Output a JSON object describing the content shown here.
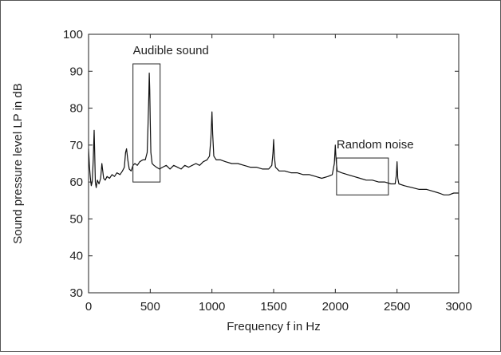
{
  "chart_data": {
    "type": "line",
    "title": "",
    "xlabel": "Frequency f in Hz",
    "ylabel": "Sound pressure level LP in dB",
    "xlim": [
      0,
      3000
    ],
    "ylim": [
      30,
      100
    ],
    "xticks": [
      0,
      500,
      1000,
      1500,
      2000,
      2500,
      3000
    ],
    "yticks": [
      30,
      40,
      50,
      60,
      70,
      80,
      90,
      100
    ],
    "grid": false,
    "series": [
      {
        "color": "#111111",
        "points": [
          [
            0,
            69
          ],
          [
            8,
            64
          ],
          [
            15,
            61
          ],
          [
            22,
            59
          ],
          [
            30,
            60
          ],
          [
            38,
            66
          ],
          [
            45,
            74
          ],
          [
            50,
            68
          ],
          [
            55,
            60
          ],
          [
            62,
            58.5
          ],
          [
            72,
            60.5
          ],
          [
            85,
            59.5
          ],
          [
            98,
            61
          ],
          [
            108,
            65
          ],
          [
            115,
            63
          ],
          [
            122,
            61
          ],
          [
            135,
            60.5
          ],
          [
            150,
            61.5
          ],
          [
            170,
            61
          ],
          [
            190,
            62
          ],
          [
            210,
            61.5
          ],
          [
            230,
            62.5
          ],
          [
            255,
            62
          ],
          [
            275,
            63
          ],
          [
            290,
            64
          ],
          [
            300,
            68
          ],
          [
            308,
            69
          ],
          [
            318,
            66
          ],
          [
            330,
            63.5
          ],
          [
            345,
            63
          ],
          [
            360,
            64.5
          ],
          [
            375,
            65
          ],
          [
            395,
            64.5
          ],
          [
            415,
            65.5
          ],
          [
            440,
            66
          ],
          [
            460,
            66
          ],
          [
            475,
            68
          ],
          [
            482,
            75
          ],
          [
            488,
            83
          ],
          [
            492,
            89.5
          ],
          [
            496,
            85
          ],
          [
            500,
            77
          ],
          [
            505,
            68
          ],
          [
            515,
            65
          ],
          [
            530,
            64.5
          ],
          [
            550,
            64
          ],
          [
            575,
            63.5
          ],
          [
            600,
            64
          ],
          [
            630,
            64.5
          ],
          [
            660,
            63.5
          ],
          [
            690,
            64.5
          ],
          [
            720,
            64
          ],
          [
            750,
            63.5
          ],
          [
            780,
            64.5
          ],
          [
            810,
            64
          ],
          [
            840,
            64.5
          ],
          [
            870,
            65
          ],
          [
            900,
            64.5
          ],
          [
            930,
            65.5
          ],
          [
            960,
            66
          ],
          [
            980,
            67
          ],
          [
            992,
            72
          ],
          [
            1000,
            79
          ],
          [
            1006,
            73
          ],
          [
            1015,
            67
          ],
          [
            1035,
            66
          ],
          [
            1070,
            66
          ],
          [
            1110,
            65.5
          ],
          [
            1160,
            65
          ],
          [
            1210,
            65
          ],
          [
            1260,
            64.5
          ],
          [
            1310,
            64
          ],
          [
            1360,
            64
          ],
          [
            1410,
            63.5
          ],
          [
            1460,
            63.5
          ],
          [
            1485,
            64.5
          ],
          [
            1495,
            68
          ],
          [
            1500,
            71.5
          ],
          [
            1506,
            67
          ],
          [
            1515,
            64
          ],
          [
            1545,
            63
          ],
          [
            1590,
            63
          ],
          [
            1640,
            62.5
          ],
          [
            1690,
            62.5
          ],
          [
            1740,
            62
          ],
          [
            1790,
            62
          ],
          [
            1840,
            61.5
          ],
          [
            1890,
            61
          ],
          [
            1940,
            61.5
          ],
          [
            1975,
            62
          ],
          [
            1992,
            65
          ],
          [
            2000,
            70
          ],
          [
            2006,
            66
          ],
          [
            2015,
            63
          ],
          [
            2050,
            62.5
          ],
          [
            2100,
            62
          ],
          [
            2150,
            61.5
          ],
          [
            2200,
            61
          ],
          [
            2250,
            60.5
          ],
          [
            2300,
            60.5
          ],
          [
            2350,
            60
          ],
          [
            2400,
            60
          ],
          [
            2450,
            59.5
          ],
          [
            2485,
            59.5
          ],
          [
            2495,
            62
          ],
          [
            2500,
            65.5
          ],
          [
            2506,
            61
          ],
          [
            2515,
            59.5
          ],
          [
            2560,
            59
          ],
          [
            2620,
            58.5
          ],
          [
            2680,
            58
          ],
          [
            2740,
            58
          ],
          [
            2790,
            57.5
          ],
          [
            2840,
            57
          ],
          [
            2880,
            56.5
          ],
          [
            2920,
            56.5
          ],
          [
            2960,
            57
          ],
          [
            3000,
            57
          ]
        ]
      }
    ],
    "annotations": [
      {
        "label": "Audible sound",
        "box": {
          "x0": 360,
          "x1": 580,
          "y0": 60,
          "y1": 92
        }
      },
      {
        "label": "Random noise",
        "box": {
          "x0": 2010,
          "x1": 2430,
          "y0": 56.5,
          "y1": 66.5
        }
      }
    ]
  }
}
